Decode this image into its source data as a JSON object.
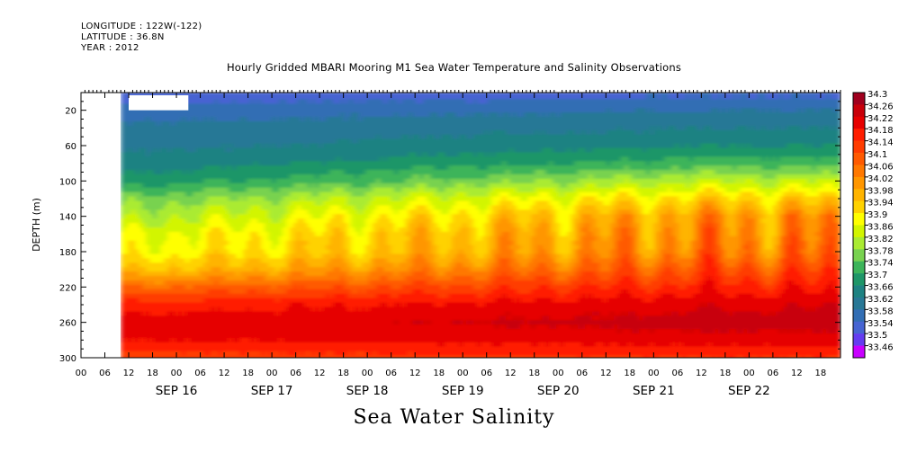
{
  "header": {
    "longitude": "LONGITUDE : 122W(-122)",
    "latitude": "LATITUDE : 36.8N",
    "year": "YEAR : 2012",
    "title": "Hourly Gridded MBARI Mooring M1 Sea Water Temperature and Salinity Observations"
  },
  "footer_title": "Sea Water Salinity",
  "chart_data": {
    "type": "heatmap",
    "title": "Hourly Gridded MBARI Mooring M1 Sea Water Temperature and Salinity Observations",
    "ylabel": "DEPTH (m)",
    "xlabel": "",
    "variable": "Sea Water Salinity",
    "y_reversed": true,
    "ylim": [
      0,
      300
    ],
    "y_ticks": [
      20,
      60,
      100,
      140,
      180,
      220,
      260,
      300
    ],
    "x_start": "2012-09-15T00:00",
    "x_end": "2012-09-22T23:00",
    "x_hour_ticks": [
      "00",
      "06",
      "12",
      "18",
      "00",
      "06",
      "12",
      "18",
      "00",
      "06",
      "12",
      "18",
      "00",
      "06",
      "12",
      "18",
      "00",
      "06",
      "12",
      "18",
      "00",
      "06",
      "12",
      "18",
      "00",
      "06",
      "12",
      "18",
      "00",
      "06",
      "12",
      "18"
    ],
    "x_date_labels": [
      "SEP 16",
      "SEP 17",
      "SEP 18",
      "SEP 19",
      "SEP 20",
      "SEP 21",
      "SEP 22"
    ],
    "data_start": "2012-09-15T10:00",
    "colorbar_levels": [
      "34.3",
      "34.26",
      "34.22",
      "34.18",
      "34.14",
      "34.1",
      "34.06",
      "34.02",
      "33.98",
      "33.94",
      "33.9",
      "33.86",
      "33.82",
      "33.78",
      "33.74",
      "33.7",
      "33.66",
      "33.62",
      "33.58",
      "33.54",
      "33.5",
      "33.46"
    ],
    "colorbar_colors": [
      "#a0001e",
      "#c8000a",
      "#e60000",
      "#ff1e00",
      "#ff3c00",
      "#ff5a00",
      "#ff7800",
      "#ff9600",
      "#ffb400",
      "#ffd200",
      "#ffff00",
      "#d2f500",
      "#aaeb32",
      "#78d250",
      "#3cb45a",
      "#1e9668",
      "#1e8282",
      "#287896",
      "#326eb4",
      "#4664d2",
      "#643cf0",
      "#c800ff"
    ],
    "profile_depth_m": [
      5,
      20,
      40,
      60,
      80,
      100,
      120,
      140,
      160,
      180,
      200,
      220,
      240,
      260,
      280,
      300
    ],
    "profile_salinity_start": [
      33.56,
      33.6,
      33.63,
      33.65,
      33.68,
      33.72,
      33.8,
      33.85,
      33.9,
      33.92,
      33.98,
      34.1,
      34.2,
      34.24,
      34.22,
      34.16
    ],
    "profile_salinity_end": [
      33.58,
      33.62,
      33.66,
      33.7,
      33.76,
      33.86,
      33.96,
      34.04,
      34.06,
      34.08,
      34.14,
      34.2,
      34.25,
      34.28,
      34.24,
      34.18
    ]
  }
}
